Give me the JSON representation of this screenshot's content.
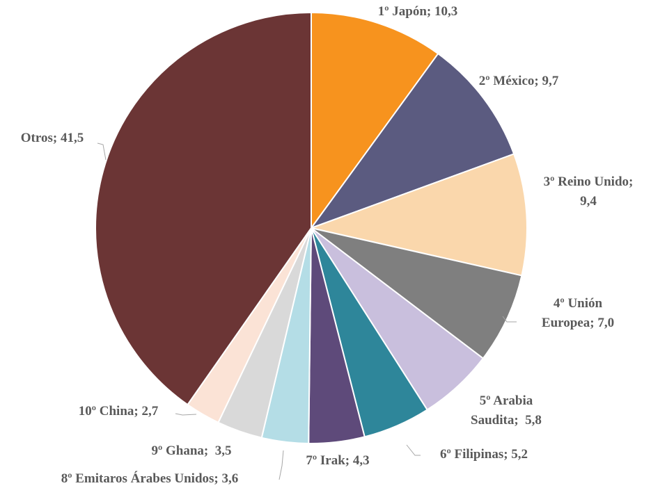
{
  "chart_data": {
    "type": "pie",
    "values": [
      10.3,
      9.7,
      9.4,
      7.0,
      5.8,
      5.2,
      4.3,
      3.6,
      3.5,
      2.7,
      41.5
    ],
    "value_labels": [
      "1º Japón; 10,3",
      "2º México; 9,7",
      "3º Reino Unido;\n9,4",
      "4º Unión\nEuropea; 7,0",
      "5º Arabia\nSaudita;  5,8",
      "6º Filipinas; 5,2",
      "7º Irak; 4,3",
      "8º Emitaros Árabes Unidos; 3,6",
      "9º Ghana;  3,5",
      "10º China; 2,7",
      "Otros; 41,5"
    ],
    "colors": [
      "#F7931E",
      "#5B5B80",
      "#FAD7AC",
      "#7F7F7F",
      "#C9BFDD",
      "#2E869A",
      "#5E4A7A",
      "#B4DDE6",
      "#D9D9D9",
      "#FBE3D6",
      "#6B3535"
    ]
  }
}
